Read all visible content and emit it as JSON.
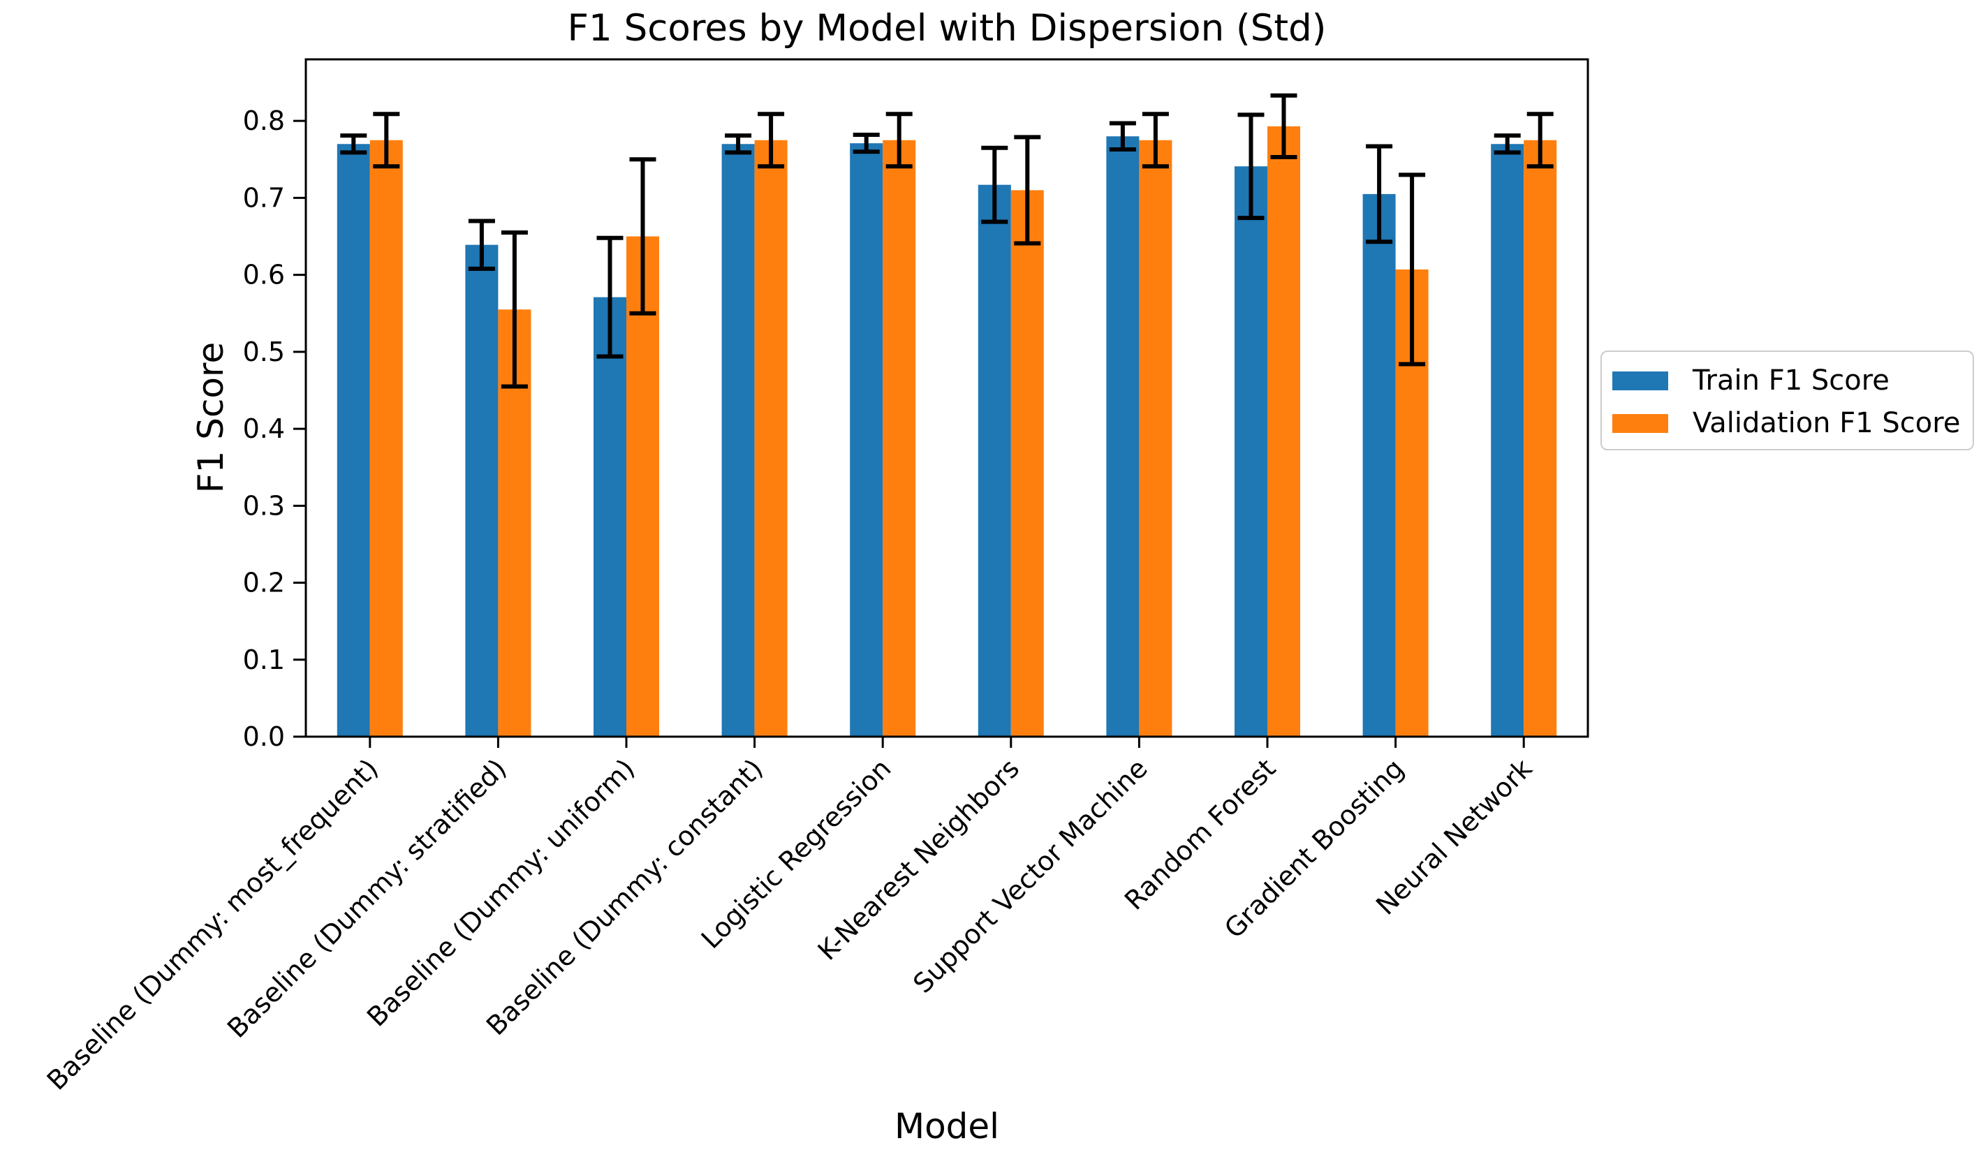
{
  "chart_data": {
    "type": "bar",
    "title": "F1 Scores by Model with Dispersion (Std)",
    "xlabel": "Model",
    "ylabel": "F1 Score",
    "ylim": [
      0,
      0.88
    ],
    "yticks": [
      "0.0",
      "0.1",
      "0.2",
      "0.3",
      "0.4",
      "0.5",
      "0.6",
      "0.7",
      "0.8"
    ],
    "grid": false,
    "legend_position": "right-outside",
    "error_bar_color": "#000000",
    "categories": [
      "Baseline (Dummy: most_frequent)",
      "Baseline (Dummy: stratified)",
      "Baseline (Dummy: uniform)",
      "Baseline (Dummy: constant)",
      "Logistic Regression",
      "K-Nearest Neighbors",
      "Support Vector Machine",
      "Random Forest",
      "Gradient Boosting",
      "Neural Network"
    ],
    "series": [
      {
        "name": "Train F1 Score",
        "color": "#1f77b4",
        "values": [
          0.77,
          0.639,
          0.571,
          0.77,
          0.771,
          0.717,
          0.78,
          0.741,
          0.705,
          0.77
        ],
        "std": [
          0.011,
          0.031,
          0.077,
          0.011,
          0.011,
          0.048,
          0.017,
          0.067,
          0.062,
          0.011
        ]
      },
      {
        "name": "Validation F1 Score",
        "color": "#ff7f0e",
        "values": [
          0.775,
          0.555,
          0.65,
          0.775,
          0.775,
          0.71,
          0.775,
          0.793,
          0.607,
          0.775
        ],
        "std": [
          0.034,
          0.1,
          0.1,
          0.034,
          0.034,
          0.069,
          0.034,
          0.04,
          0.123,
          0.034
        ]
      }
    ]
  }
}
